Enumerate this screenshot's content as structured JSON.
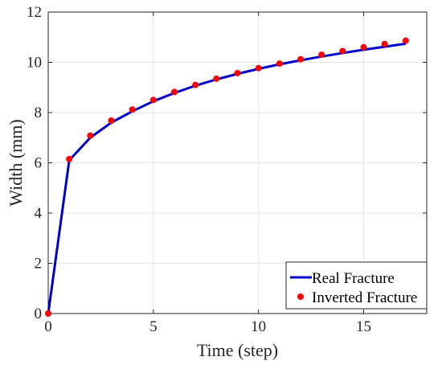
{
  "chart_data": {
    "type": "line",
    "xlabel": "Time (step)",
    "ylabel": "Width (mm)",
    "xlim": [
      0,
      18
    ],
    "ylim": [
      0,
      12
    ],
    "xticks": [
      0,
      5,
      10,
      15
    ],
    "yticks": [
      0,
      2,
      4,
      6,
      8,
      10,
      12
    ],
    "grid": true,
    "legend_position": "bottom-right",
    "series": [
      {
        "name": "Real Fracture",
        "style": "line",
        "color": "#0000cc",
        "x": [
          0,
          1,
          2,
          3,
          4,
          5,
          6,
          7,
          8,
          9,
          10,
          11,
          12,
          13,
          14,
          15,
          16,
          17
        ],
        "y": [
          0,
          6.1,
          7.0,
          7.6,
          8.05,
          8.45,
          8.78,
          9.07,
          9.32,
          9.54,
          9.74,
          9.92,
          10.08,
          10.23,
          10.37,
          10.5,
          10.62,
          10.74
        ]
      },
      {
        "name": "Inverted Fracture",
        "style": "marker",
        "color": "#ff0000",
        "x": [
          0,
          1,
          2,
          3,
          4,
          5,
          6,
          7,
          8,
          9,
          10,
          11,
          12,
          13,
          14,
          15,
          16,
          17
        ],
        "y": [
          0,
          6.15,
          7.08,
          7.68,
          8.12,
          8.5,
          8.82,
          9.1,
          9.35,
          9.57,
          9.77,
          9.95,
          10.12,
          10.3,
          10.45,
          10.6,
          10.73,
          10.86
        ]
      }
    ]
  }
}
